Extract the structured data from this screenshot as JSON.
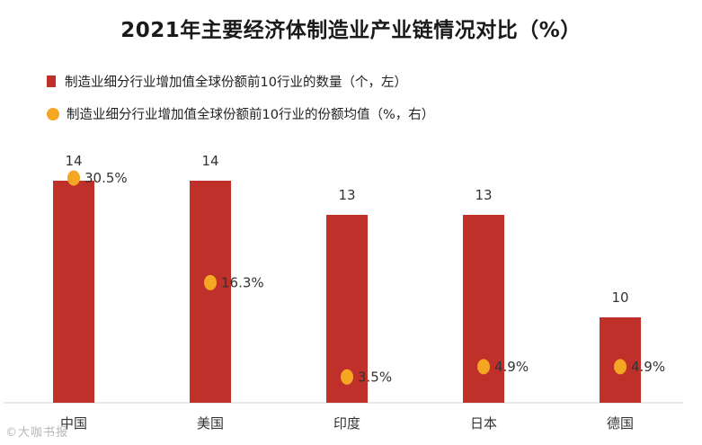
{
  "title": "2021年主要经济体制造业产业链情况对比（%）",
  "legend": {
    "bar_label": "制造业细分行业增加值全球份额前10行业的数量（个，左）",
    "dot_label": "制造业细分行业增加值全球份额前10行业的份额均值（%，右）"
  },
  "watermark": "©大咖书报",
  "colors": {
    "bar": "#c0302b",
    "dot": "#f5a623"
  },
  "chart_data": {
    "type": "bar",
    "title": "2021年主要经济体制造业产业链情况对比（%）",
    "categories": [
      "中国",
      "美国",
      "印度",
      "日本",
      "德国"
    ],
    "series": [
      {
        "name": "制造业细分行业增加值全球份额前10行业的数量（个，左）",
        "type": "bar",
        "axis": "left",
        "values": [
          14,
          14,
          13,
          13,
          10
        ],
        "labels": [
          "14",
          "14",
          "13",
          "13",
          "10"
        ]
      },
      {
        "name": "制造业细分行业增加值全球份额前10行业的份额均值（%，右）",
        "type": "scatter",
        "axis": "right",
        "values": [
          30.5,
          16.3,
          3.5,
          4.9,
          4.9
        ],
        "labels": [
          "30.5%",
          "16.3%",
          "3.5%",
          "4.9%",
          "4.9%"
        ]
      }
    ],
    "y_left_range": [
      7.5,
      14.5
    ],
    "y_right_range": [
      0,
      33
    ],
    "grid": false,
    "legend_position": "top-left"
  }
}
